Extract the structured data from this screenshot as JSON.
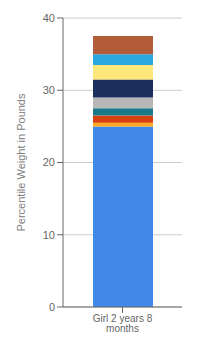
{
  "chart_data": {
    "type": "bar",
    "stacked": true,
    "categories": [
      "Girl 2 years 8 months"
    ],
    "series": [
      {
        "color": "#4189E8",
        "values": [
          25.0
        ]
      },
      {
        "color": "#FFA820",
        "values": [
          0.5
        ]
      },
      {
        "color": "#D94010",
        "values": [
          1.0
        ]
      },
      {
        "color": "#1A7A8A",
        "values": [
          1.0
        ]
      },
      {
        "color": "#B8B8B8",
        "values": [
          1.5
        ]
      },
      {
        "color": "#1C2E5E",
        "values": [
          2.5
        ]
      },
      {
        "color": "#FFE87A",
        "values": [
          2.0
        ]
      },
      {
        "color": "#29A8E0",
        "values": [
          1.5
        ]
      },
      {
        "color": "#B35C3A",
        "values": [
          2.5
        ]
      }
    ],
    "ylabel": "Percentile Weight in Pounds",
    "ylim": [
      0,
      40
    ],
    "yticks": [
      0,
      10,
      20,
      30,
      40
    ],
    "grid": true
  }
}
